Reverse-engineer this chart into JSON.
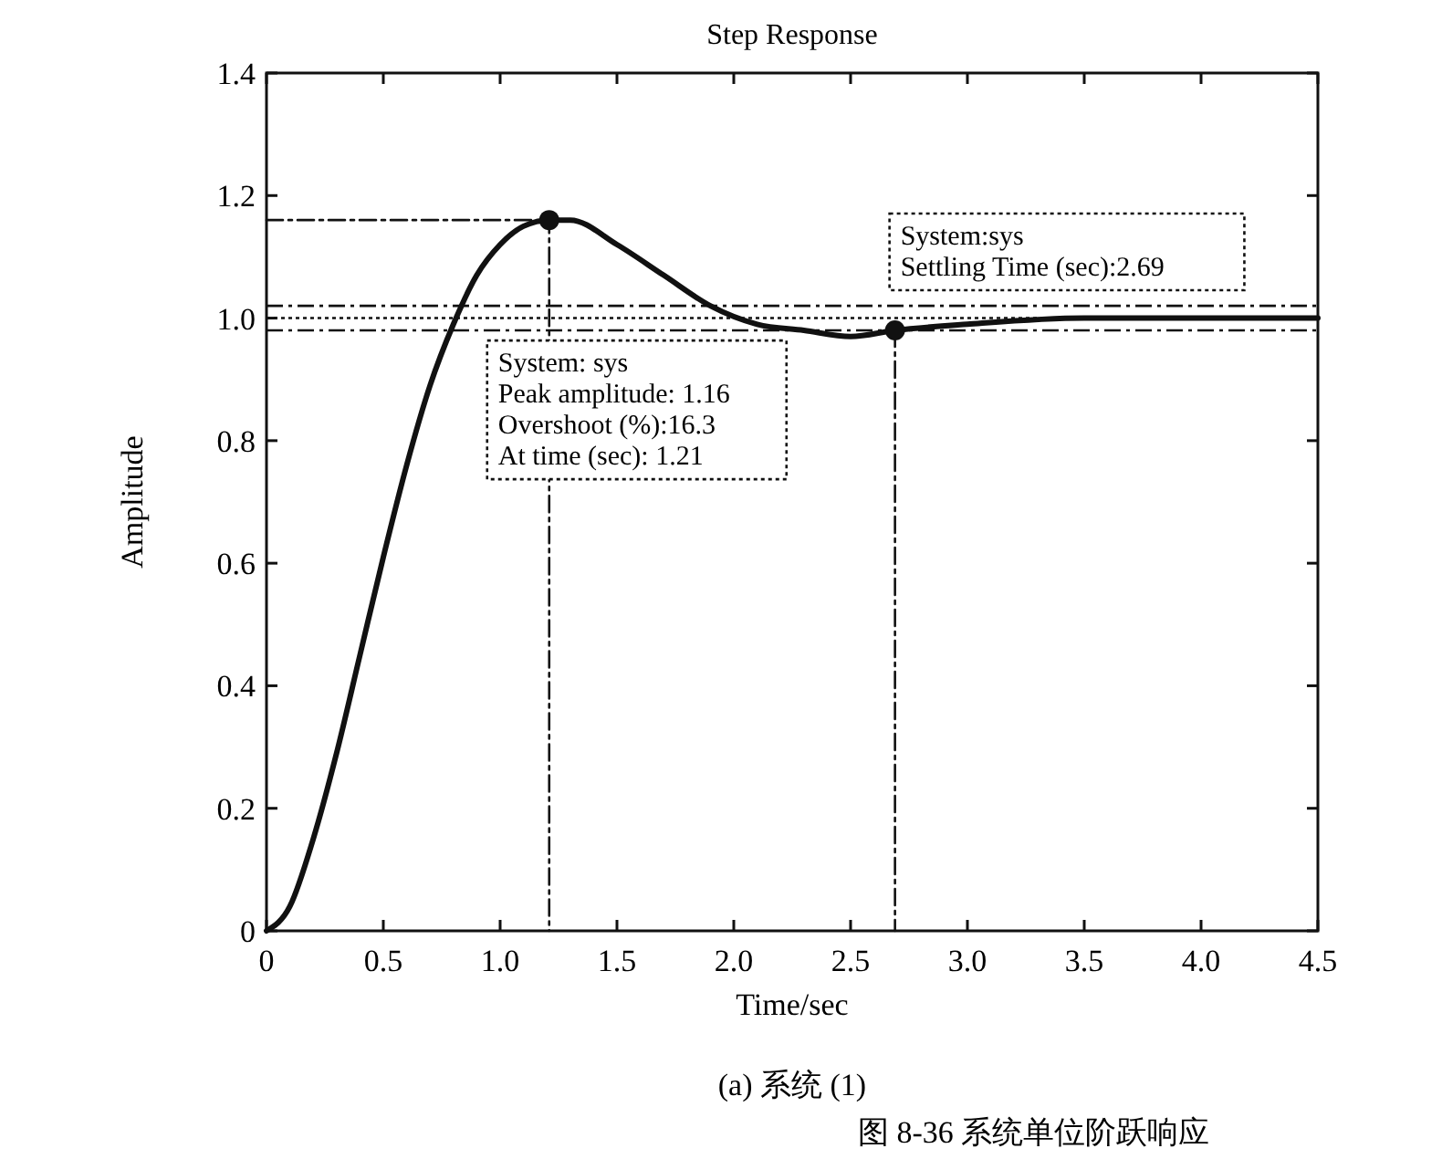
{
  "chart_data": {
    "type": "line",
    "title": "Step Response",
    "xlabel": "Time/sec",
    "ylabel": "Amplitude",
    "xlim": [
      0,
      4.5
    ],
    "ylim": [
      0,
      1.4
    ],
    "xticks": [
      0,
      0.5,
      {
        "value": 1,
        "label": "1.0"
      },
      1.5,
      {
        "value": 2,
        "label": "2.0"
      },
      2.5,
      {
        "value": 3,
        "label": "3.0"
      },
      3.5,
      {
        "value": 4,
        "label": "4.0"
      },
      4.5
    ],
    "yticks": [
      0,
      0.2,
      0.4,
      0.6,
      0.8,
      {
        "value": 1,
        "label": "1.0"
      },
      1.2,
      1.4
    ],
    "grid": false,
    "series": [
      {
        "color": "#111111",
        "x": [
          0,
          0.1,
          0.2,
          0.3,
          0.4,
          0.5,
          0.6,
          0.7,
          0.8,
          0.9,
          1.0,
          1.1,
          1.21,
          1.3,
          1.5,
          1.7,
          1.9,
          2.1,
          2.3,
          2.5,
          2.69,
          3.0,
          3.5,
          4.0,
          4.5
        ],
        "values": [
          0,
          0.04,
          0.15,
          0.29,
          0.45,
          0.61,
          0.76,
          0.89,
          0.99,
          1.07,
          1.12,
          1.15,
          1.16,
          1.16,
          1.12,
          1.07,
          1.02,
          0.99,
          0.98,
          0.97,
          0.98,
          0.99,
          1.0,
          1.0,
          1.0
        ],
        "line_style": "solid",
        "marker": "none"
      },
      {
        "color": "#111111",
        "x": [
          0,
          1.21,
          1.21
        ],
        "values": [
          1.16,
          1.16,
          0
        ],
        "line_style": "dashed",
        "marker": "none"
      },
      {
        "color": "#111111",
        "x": [
          2.69,
          2.69
        ],
        "values": [
          0.98,
          0
        ],
        "line_style": "dashed",
        "marker": "none"
      },
      {
        "type": "scatter",
        "color": "#111111",
        "x": [
          1.21,
          2.69
        ],
        "values": [
          1.16,
          0.98
        ],
        "marker": "circle"
      }
    ],
    "ref_lines": [
      {
        "axis": "y",
        "value": 1.02,
        "line_style": "dashed"
      },
      {
        "axis": "y",
        "value": 1.0,
        "line_style": "dotted"
      },
      {
        "axis": "y",
        "value": 0.98,
        "line_style": "dashed"
      }
    ],
    "annotations": [
      "System: sys\nPeak amplitude: 1.16\nOvershoot (%):16.3\nAt time (sec): 1.21",
      "System:sys\nSettling Time (sec):2.69",
      "(a) 系统 (1)",
      "图 8-36 系统单位阶跃响应"
    ]
  }
}
